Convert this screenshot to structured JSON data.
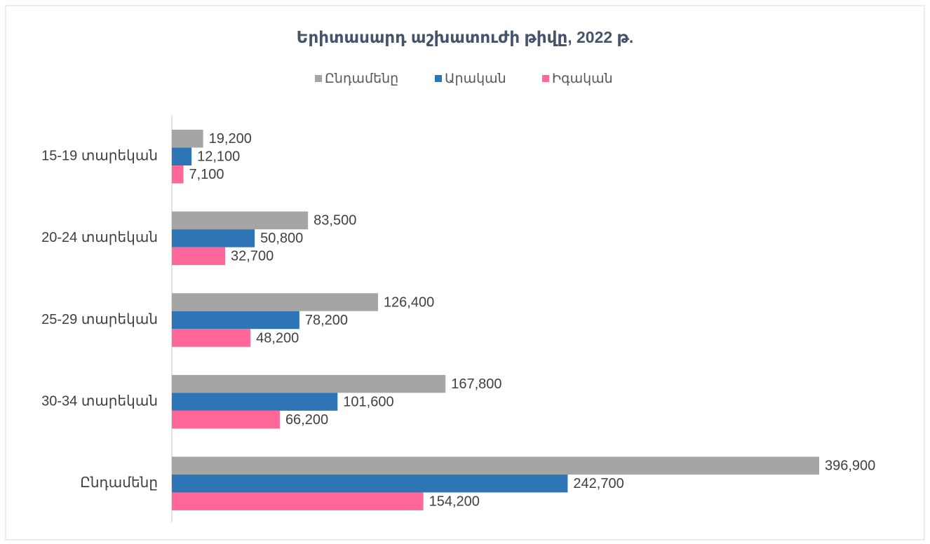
{
  "chart_data": {
    "type": "hbar",
    "title": "Երիտասարդ աշխատուժի թիվը, 2022 թ.",
    "categories": [
      "15-19 տարեկան",
      "20-24 տարեկան",
      "25-29 տարեկան",
      "30-34 տարեկան",
      "Ընդամենը"
    ],
    "series": [
      {
        "name": "Ընդամենը",
        "color": "#a5a5a5",
        "values": [
          19200,
          83500,
          126400,
          167800,
          396900
        ],
        "value_labels": [
          "19,200",
          "83,500",
          "126,400",
          "167,800",
          "396,900"
        ]
      },
      {
        "name": "Արական",
        "color": "#2e75b6",
        "values": [
          12100,
          50800,
          78200,
          101600,
          242700
        ],
        "value_labels": [
          "12,100",
          "50,800",
          "78,200",
          "101,600",
          "242,700"
        ]
      },
      {
        "name": "Իգական",
        "color": "#ff6699",
        "values": [
          7100,
          32700,
          48200,
          66200,
          154200
        ],
        "value_labels": [
          "7,100",
          "32,700",
          "48,200",
          "66,200",
          "154,200"
        ]
      }
    ],
    "legend": "top"
  }
}
